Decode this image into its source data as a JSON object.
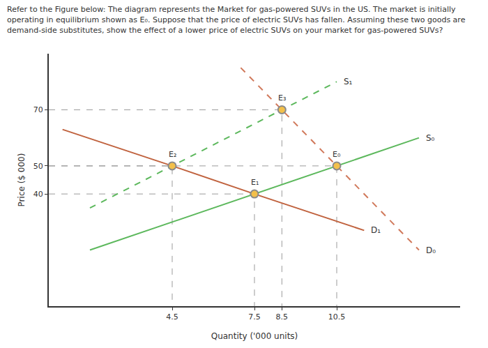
{
  "chart_data": {
    "type": "line",
    "title": "Refer to the Figure below: The diagram represents the Market for gas-powered SUVs in the US. The market is initially operating in equilibrium shown as E₀. Suppose that the price of electric SUVs has fallen. Assuming these two goods are demand-side substitutes, show the effect of a lower price of electric SUVs on your market for gas-powered SUVs?",
    "x_label": "Quantity ('000 units)",
    "y_label": "Price ($ 000)",
    "xlim": [
      0,
      15
    ],
    "ylim": [
      0,
      90
    ],
    "xticks": [
      4.5,
      7.5,
      8.5,
      10.5
    ],
    "yticks": [
      40,
      50,
      70
    ],
    "grid": false,
    "marker": "circle",
    "series": [
      {
        "name": "S₀",
        "color": "#5cb85c",
        "line_style": "solid",
        "x": [
          1.5,
          7.5,
          10.5,
          13.5
        ],
        "values": [
          20,
          40,
          50,
          60
        ]
      },
      {
        "name": "S₁",
        "color": "#5cb85c",
        "line_style": "dashed",
        "x": [
          1.5,
          4.5,
          8.5,
          10.5
        ],
        "values": [
          35,
          50,
          70,
          80
        ]
      },
      {
        "name": "D₀",
        "color": "#d0785a",
        "line_style": "dashed",
        "x": [
          7,
          8.5,
          10.5,
          13.5
        ],
        "values": [
          85,
          70,
          50,
          20
        ]
      },
      {
        "name": "D₁",
        "color": "#c0623e",
        "line_style": "solid",
        "x": [
          0.5,
          4.5,
          7.5,
          11.5
        ],
        "values": [
          63,
          50,
          40,
          27
        ]
      }
    ],
    "points": [
      {
        "label": "E₀",
        "x": 10.5,
        "y": 50
      },
      {
        "label": "E₁",
        "x": 7.5,
        "y": 40
      },
      {
        "label": "E₂",
        "x": 4.5,
        "y": 50
      },
      {
        "label": "E₃",
        "x": 8.5,
        "y": 70
      }
    ]
  }
}
